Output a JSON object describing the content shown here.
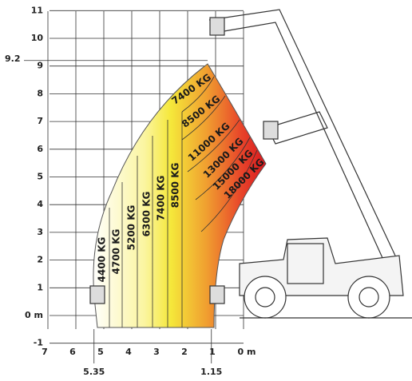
{
  "y_ticks": [
    {
      "value": 11,
      "label": "11"
    },
    {
      "value": 10,
      "label": "10"
    },
    {
      "value": 9,
      "label": "9"
    },
    {
      "value": 8,
      "label": "8"
    },
    {
      "value": 7,
      "label": "7"
    },
    {
      "value": 6,
      "label": "6"
    },
    {
      "value": 5,
      "label": "5"
    },
    {
      "value": 4,
      "label": "4"
    },
    {
      "value": 3,
      "label": "3"
    },
    {
      "value": 2,
      "label": "2"
    },
    {
      "value": 1,
      "label": "1"
    },
    {
      "value": 0,
      "label": "0 m"
    },
    {
      "value": -1,
      "label": "-1"
    }
  ],
  "max_height": {
    "value": 9.2,
    "label": "9.2"
  },
  "x_ticks": [
    {
      "value": 7,
      "label": "7"
    },
    {
      "value": 6,
      "label": "6"
    },
    {
      "value": 5,
      "label": "5"
    },
    {
      "value": 4,
      "label": "4"
    },
    {
      "value": 3,
      "label": "3"
    },
    {
      "value": 2,
      "label": "2"
    },
    {
      "value": 1,
      "label": "1"
    },
    {
      "value": 0,
      "label": "0 m"
    }
  ],
  "reach_marks": [
    {
      "value": 5.35,
      "label": "5.35"
    },
    {
      "value": 1.15,
      "label": "1.15"
    }
  ],
  "vertical_loads": [
    "4400 KG",
    "4700 KG",
    "5200 KG",
    "6300 KG",
    "7400 KG",
    "8500 KG"
  ],
  "diagonal_loads": [
    "7400 KG",
    "8500 KG",
    "11000 KG",
    "13000 KG",
    "15000 KG",
    "18000 KG"
  ]
}
